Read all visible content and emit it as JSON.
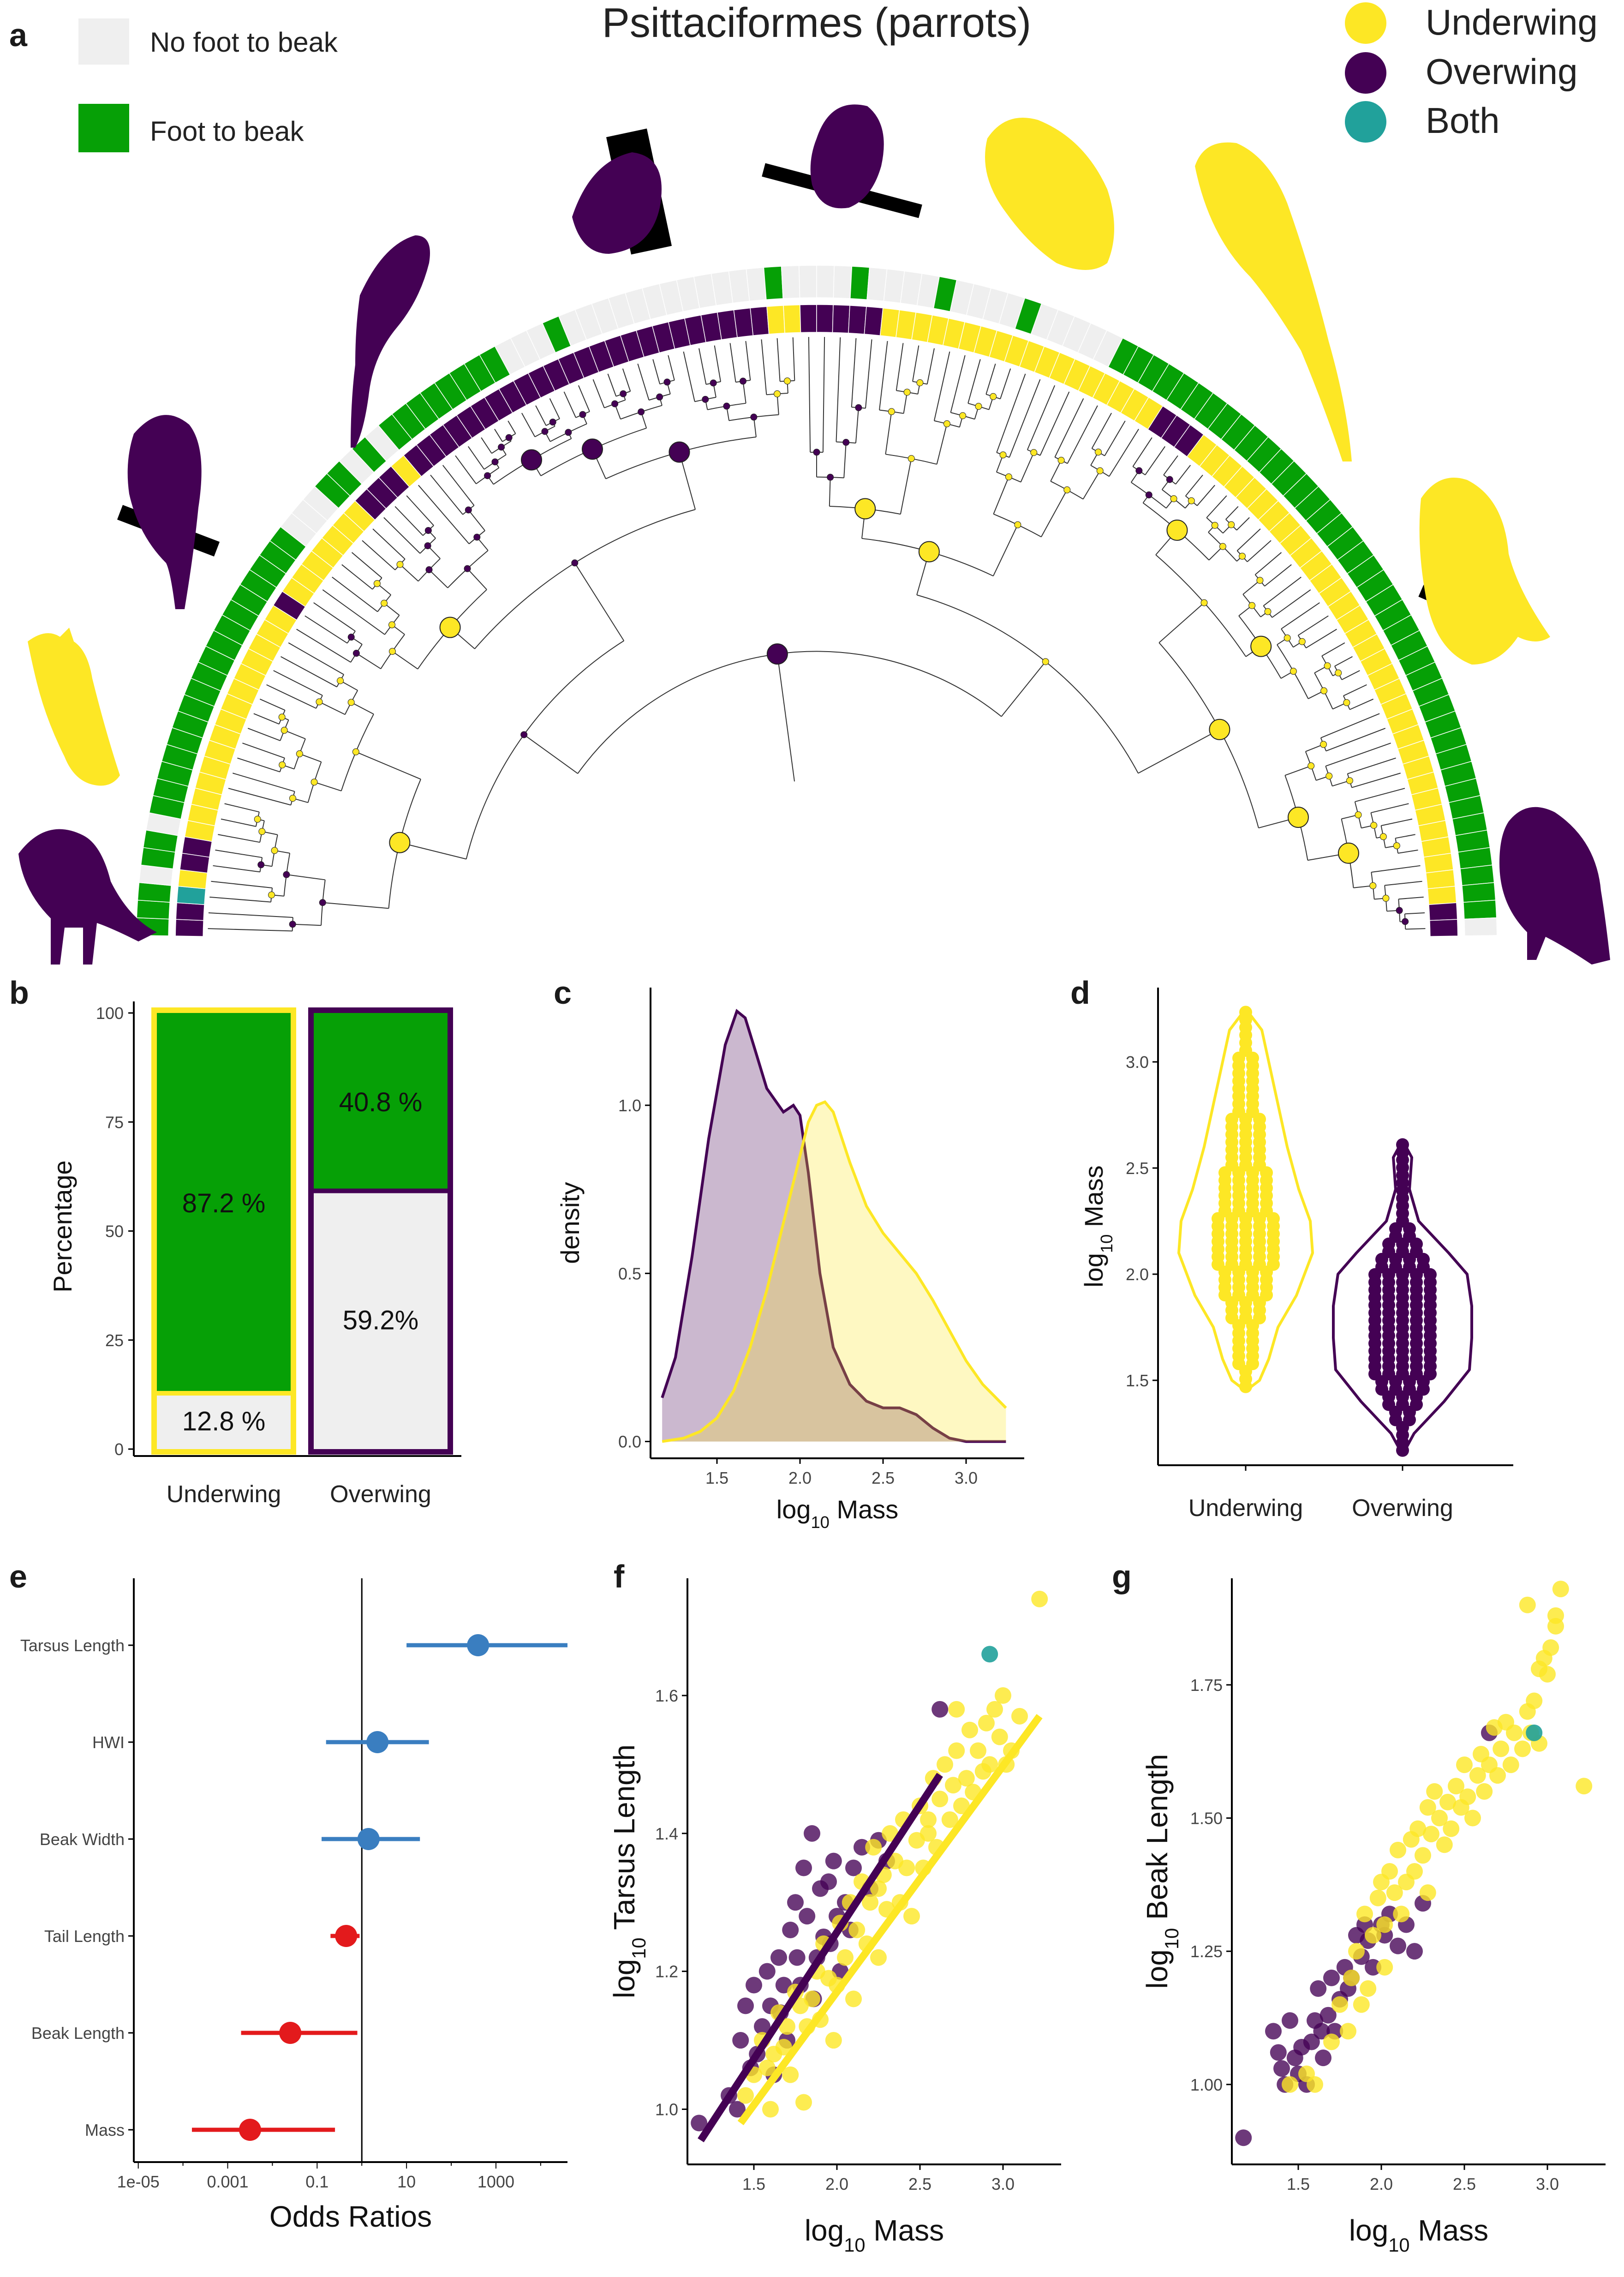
{
  "colors": {
    "underwing": "#FDE725",
    "overwing": "#440154",
    "both": "#21A19B",
    "foot_to_beak": "#06A006",
    "no_foot_to_beak": "#EFEFEF",
    "positive": "#3A7EC0",
    "negative": "#E31A1C"
  },
  "panel_a": {
    "letter": "a",
    "title": "Psittaciformes (parrots)",
    "legend_left": [
      {
        "label": "No foot to beak",
        "color": "#EFEFEF"
      },
      {
        "label": "Foot to beak",
        "color": "#06A006"
      }
    ],
    "legend_right": [
      {
        "label": "Underwing",
        "color": "#FDE725"
      },
      {
        "label": "Overwing",
        "color": "#440154"
      },
      {
        "label": "Both",
        "color": "#21A19B"
      }
    ]
  },
  "chart_data": [
    {
      "panel": "b",
      "type": "bar",
      "stacked": true,
      "ylabel": "Percentage",
      "yticks": [
        0,
        25,
        50,
        75,
        100
      ],
      "categories": [
        "Underwing",
        "Overwing"
      ],
      "series": [
        {
          "name": "No foot to beak",
          "values": [
            12.8,
            59.2
          ],
          "labels": [
            "12.8 %",
            "59.2%"
          ]
        },
        {
          "name": "Foot to beak",
          "values": [
            87.2,
            40.8
          ],
          "labels": [
            "87.2 %",
            "40.8 %"
          ]
        }
      ]
    },
    {
      "panel": "c",
      "type": "area",
      "xlabel_main": "log",
      "xlabel_sub": "10",
      "xlabel_rest": " Mass",
      "ylabel": "density",
      "xticks": [
        1.5,
        2.0,
        2.5,
        3.0
      ],
      "yticks": [
        0.0,
        0.5,
        1.0
      ],
      "xlim": [
        1.1,
        3.35
      ],
      "ylim": [
        -0.05,
        1.35
      ],
      "series": [
        {
          "name": "Overwing",
          "x": [
            1.17,
            1.25,
            1.35,
            1.45,
            1.55,
            1.62,
            1.67,
            1.72,
            1.8,
            1.9,
            1.96,
            2.0,
            2.05,
            2.12,
            2.2,
            2.3,
            2.4,
            2.5,
            2.6,
            2.7,
            2.8,
            2.9,
            3.0,
            3.1,
            3.24
          ],
          "y": [
            0.13,
            0.25,
            0.55,
            0.9,
            1.18,
            1.28,
            1.26,
            1.18,
            1.05,
            0.98,
            1.0,
            0.97,
            0.8,
            0.5,
            0.28,
            0.17,
            0.12,
            0.1,
            0.1,
            0.08,
            0.04,
            0.01,
            0.0,
            0.0,
            0.0
          ]
        },
        {
          "name": "Underwing",
          "x": [
            1.17,
            1.3,
            1.4,
            1.5,
            1.6,
            1.7,
            1.8,
            1.9,
            2.0,
            2.05,
            2.1,
            2.15,
            2.2,
            2.3,
            2.4,
            2.5,
            2.6,
            2.7,
            2.8,
            2.9,
            3.0,
            3.1,
            3.24
          ],
          "y": [
            0.0,
            0.01,
            0.03,
            0.07,
            0.15,
            0.28,
            0.45,
            0.65,
            0.85,
            0.95,
            1.0,
            1.01,
            0.98,
            0.83,
            0.7,
            0.62,
            0.56,
            0.5,
            0.42,
            0.33,
            0.24,
            0.17,
            0.1
          ]
        }
      ]
    },
    {
      "panel": "d",
      "type": "scatter",
      "subtype": "violin",
      "ylabel_main": "log",
      "ylabel_sub": "10",
      "ylabel_rest": " Mass",
      "categories": [
        "Underwing",
        "Overwing"
      ],
      "yticks": [
        1.5,
        2.0,
        2.5,
        3.0
      ],
      "ylim": [
        1.1,
        3.35
      ]
    },
    {
      "panel": "e",
      "type": "scatter",
      "subtype": "forest",
      "xlabel": "Odds Ratios",
      "xscale": "log",
      "xticks": [
        "1e-05",
        "0.001",
        "0.1",
        "10",
        "1000"
      ],
      "xtick_values": [
        -5,
        -3,
        -1,
        1,
        3
      ],
      "xlim_log10": [
        -5.1,
        4.6
      ],
      "reference": 0,
      "series": [
        {
          "label": "Tarsus Length",
          "estimate_log10": 2.6,
          "lo": 1.0,
          "hi": 4.6,
          "sign": "positive"
        },
        {
          "label": "HWI",
          "estimate_log10": 0.35,
          "lo": -0.8,
          "hi": 1.5,
          "sign": "positive"
        },
        {
          "label": "Beak Width",
          "estimate_log10": 0.15,
          "lo": -0.9,
          "hi": 1.3,
          "sign": "positive"
        },
        {
          "label": "Tail Length",
          "estimate_log10": -0.35,
          "lo": -0.7,
          "hi": -0.05,
          "sign": "negative"
        },
        {
          "label": "Beak Length",
          "estimate_log10": -1.6,
          "lo": -2.7,
          "hi": -0.1,
          "sign": "negative"
        },
        {
          "label": "Mass",
          "estimate_log10": -2.5,
          "lo": -3.8,
          "hi": -0.6,
          "sign": "negative"
        }
      ]
    },
    {
      "panel": "f",
      "type": "scatter",
      "xlabel_main": "log",
      "xlabel_sub": "10",
      "xlabel_rest": " Mass",
      "ylabel_main": "log",
      "ylabel_sub": "10",
      "ylabel_rest": " Tarsus Length",
      "xticks": [
        1.5,
        2.0,
        2.5,
        3.0
      ],
      "yticks": [
        1.0,
        1.2,
        1.4,
        1.6
      ],
      "xlim": [
        1.1,
        3.35
      ],
      "ylim": [
        0.92,
        1.77
      ],
      "fits": [
        {
          "name": "Overwing",
          "x": [
            1.18,
            2.62
          ],
          "y": [
            0.955,
            1.485
          ]
        },
        {
          "name": "Underwing",
          "x": [
            1.42,
            3.22
          ],
          "y": [
            0.98,
            1.57
          ]
        }
      ],
      "points_overwing": [
        [
          1.17,
          0.98
        ],
        [
          1.35,
          1.02
        ],
        [
          1.42,
          1.1
        ],
        [
          1.45,
          1.15
        ],
        [
          1.5,
          1.18
        ],
        [
          1.52,
          1.08
        ],
        [
          1.55,
          1.12
        ],
        [
          1.58,
          1.2
        ],
        [
          1.6,
          1.15
        ],
        [
          1.62,
          1.05
        ],
        [
          1.65,
          1.22
        ],
        [
          1.68,
          1.18
        ],
        [
          1.7,
          1.1
        ],
        [
          1.72,
          1.26
        ],
        [
          1.75,
          1.3
        ],
        [
          1.78,
          1.18
        ],
        [
          1.8,
          1.35
        ],
        [
          1.82,
          1.28
        ],
        [
          1.85,
          1.4
        ],
        [
          1.88,
          1.22
        ],
        [
          1.9,
          1.32
        ],
        [
          1.92,
          1.25
        ],
        [
          1.95,
          1.33
        ],
        [
          1.98,
          1.36
        ],
        [
          2.0,
          1.28
        ],
        [
          2.02,
          1.2
        ],
        [
          2.05,
          1.3
        ],
        [
          2.1,
          1.35
        ],
        [
          2.15,
          1.38
        ],
        [
          2.2,
          1.32
        ],
        [
          2.25,
          1.39
        ],
        [
          2.3,
          1.36
        ],
        [
          2.62,
          1.58
        ],
        [
          1.4,
          1.0
        ],
        [
          1.48,
          1.06
        ],
        [
          1.66,
          1.14
        ],
        [
          1.76,
          1.22
        ],
        [
          1.86,
          1.16
        ],
        [
          1.96,
          1.24
        ],
        [
          2.08,
          1.26
        ]
      ],
      "points_underwing": [
        [
          1.5,
          1.05
        ],
        [
          1.55,
          1.1
        ],
        [
          1.6,
          1.0
        ],
        [
          1.62,
          1.08
        ],
        [
          1.65,
          1.14
        ],
        [
          1.7,
          1.12
        ],
        [
          1.72,
          1.05
        ],
        [
          1.75,
          1.17
        ],
        [
          1.8,
          1.01
        ],
        [
          1.82,
          1.12
        ],
        [
          1.85,
          1.16
        ],
        [
          1.88,
          1.2
        ],
        [
          1.9,
          1.13
        ],
        [
          1.92,
          1.24
        ],
        [
          1.95,
          1.19
        ],
        [
          1.98,
          1.1
        ],
        [
          2.0,
          1.18
        ],
        [
          2.02,
          1.27
        ],
        [
          2.05,
          1.22
        ],
        [
          2.08,
          1.3
        ],
        [
          2.1,
          1.16
        ],
        [
          2.12,
          1.26
        ],
        [
          2.15,
          1.33
        ],
        [
          2.18,
          1.24
        ],
        [
          2.2,
          1.3
        ],
        [
          2.22,
          1.38
        ],
        [
          2.25,
          1.22
        ],
        [
          2.28,
          1.34
        ],
        [
          2.3,
          1.29
        ],
        [
          2.32,
          1.4
        ],
        [
          2.35,
          1.36
        ],
        [
          2.38,
          1.3
        ],
        [
          2.4,
          1.42
        ],
        [
          2.42,
          1.35
        ],
        [
          2.45,
          1.28
        ],
        [
          2.48,
          1.39
        ],
        [
          2.5,
          1.44
        ],
        [
          2.52,
          1.35
        ],
        [
          2.55,
          1.42
        ],
        [
          2.58,
          1.48
        ],
        [
          2.6,
          1.38
        ],
        [
          2.62,
          1.45
        ],
        [
          2.65,
          1.5
        ],
        [
          2.68,
          1.42
        ],
        [
          2.7,
          1.47
        ],
        [
          2.72,
          1.52
        ],
        [
          2.75,
          1.44
        ],
        [
          2.78,
          1.48
        ],
        [
          2.8,
          1.55
        ],
        [
          2.82,
          1.46
        ],
        [
          2.85,
          1.52
        ],
        [
          2.88,
          1.49
        ],
        [
          2.9,
          1.56
        ],
        [
          2.92,
          1.5
        ],
        [
          2.95,
          1.58
        ],
        [
          2.98,
          1.54
        ],
        [
          3.0,
          1.6
        ],
        [
          3.02,
          1.5
        ],
        [
          3.05,
          1.52
        ],
        [
          3.1,
          1.57
        ],
        [
          3.22,
          1.74
        ],
        [
          1.45,
          1.02
        ],
        [
          1.58,
          1.06
        ],
        [
          1.68,
          1.09
        ],
        [
          1.78,
          1.15
        ],
        [
          2.25,
          1.32
        ],
        [
          2.55,
          1.4
        ],
        [
          2.72,
          1.58
        ]
      ],
      "points_both": [
        [
          2.92,
          1.66
        ]
      ]
    },
    {
      "panel": "g",
      "type": "scatter",
      "xlabel_main": "log",
      "xlabel_sub": "10",
      "xlabel_rest": " Mass",
      "ylabel_main": "log",
      "ylabel_sub": "10",
      "ylabel_rest": " Beak Length",
      "xticks": [
        1.5,
        2.0,
        2.5,
        3.0
      ],
      "yticks": [
        1.0,
        1.25,
        1.5,
        1.75
      ],
      "xlim": [
        1.1,
        3.35
      ],
      "ylim": [
        0.85,
        1.95
      ],
      "points_overwing": [
        [
          1.17,
          0.9
        ],
        [
          1.35,
          1.1
        ],
        [
          1.38,
          1.06
        ],
        [
          1.4,
          1.03
        ],
        [
          1.42,
          1.0
        ],
        [
          1.45,
          1.12
        ],
        [
          1.48,
          1.05
        ],
        [
          1.5,
          1.02
        ],
        [
          1.55,
          1.0
        ],
        [
          1.58,
          1.08
        ],
        [
          1.6,
          1.12
        ],
        [
          1.62,
          1.18
        ],
        [
          1.65,
          1.05
        ],
        [
          1.68,
          1.13
        ],
        [
          1.7,
          1.2
        ],
        [
          1.72,
          1.1
        ],
        [
          1.75,
          1.16
        ],
        [
          1.78,
          1.22
        ],
        [
          1.8,
          1.18
        ],
        [
          1.85,
          1.28
        ],
        [
          1.88,
          1.24
        ],
        [
          1.9,
          1.3
        ],
        [
          1.92,
          1.27
        ],
        [
          1.95,
          1.22
        ],
        [
          2.0,
          1.3
        ],
        [
          2.02,
          1.28
        ],
        [
          2.05,
          1.32
        ],
        [
          2.1,
          1.26
        ],
        [
          2.15,
          1.3
        ],
        [
          2.2,
          1.25
        ],
        [
          2.25,
          1.34
        ],
        [
          2.65,
          1.66
        ],
        [
          1.52,
          1.07
        ],
        [
          1.64,
          1.1
        ],
        [
          1.82,
          1.2
        ]
      ],
      "points_underwing": [
        [
          1.45,
          1.0
        ],
        [
          1.55,
          1.02
        ],
        [
          1.6,
          1.0
        ],
        [
          1.7,
          1.08
        ],
        [
          1.75,
          1.15
        ],
        [
          1.8,
          1.1
        ],
        [
          1.82,
          1.2
        ],
        [
          1.85,
          1.25
        ],
        [
          1.9,
          1.32
        ],
        [
          1.92,
          1.18
        ],
        [
          1.95,
          1.28
        ],
        [
          1.98,
          1.35
        ],
        [
          2.0,
          1.38
        ],
        [
          2.02,
          1.3
        ],
        [
          2.05,
          1.4
        ],
        [
          2.08,
          1.36
        ],
        [
          2.1,
          1.44
        ],
        [
          2.12,
          1.32
        ],
        [
          2.15,
          1.38
        ],
        [
          2.18,
          1.46
        ],
        [
          2.2,
          1.4
        ],
        [
          2.22,
          1.48
        ],
        [
          2.25,
          1.43
        ],
        [
          2.28,
          1.52
        ],
        [
          2.3,
          1.47
        ],
        [
          2.32,
          1.55
        ],
        [
          2.35,
          1.5
        ],
        [
          2.38,
          1.45
        ],
        [
          2.4,
          1.53
        ],
        [
          2.42,
          1.48
        ],
        [
          2.45,
          1.56
        ],
        [
          2.48,
          1.52
        ],
        [
          2.5,
          1.6
        ],
        [
          2.52,
          1.54
        ],
        [
          2.55,
          1.5
        ],
        [
          2.58,
          1.58
        ],
        [
          2.6,
          1.62
        ],
        [
          2.62,
          1.55
        ],
        [
          2.65,
          1.6
        ],
        [
          2.68,
          1.67
        ],
        [
          2.7,
          1.58
        ],
        [
          2.72,
          1.63
        ],
        [
          2.75,
          1.68
        ],
        [
          2.78,
          1.6
        ],
        [
          2.8,
          1.66
        ],
        [
          2.85,
          1.63
        ],
        [
          2.88,
          1.7
        ],
        [
          2.9,
          1.66
        ],
        [
          2.92,
          1.72
        ],
        [
          2.95,
          1.78
        ],
        [
          2.98,
          1.8
        ],
        [
          3.0,
          1.77
        ],
        [
          3.02,
          1.82
        ],
        [
          3.05,
          1.86
        ],
        [
          2.88,
          1.9
        ],
        [
          3.08,
          1.93
        ],
        [
          3.05,
          1.88
        ],
        [
          3.22,
          1.56
        ],
        [
          2.95,
          1.64
        ],
        [
          1.88,
          1.15
        ],
        [
          2.02,
          1.22
        ],
        [
          2.28,
          1.36
        ]
      ],
      "points_both": [
        [
          2.92,
          1.66
        ]
      ]
    }
  ],
  "panel_b_letter": "b",
  "panel_c_letter": "c",
  "panel_d_letter": "d",
  "panel_e_letter": "e",
  "panel_f_letter": "f",
  "panel_g_letter": "g"
}
